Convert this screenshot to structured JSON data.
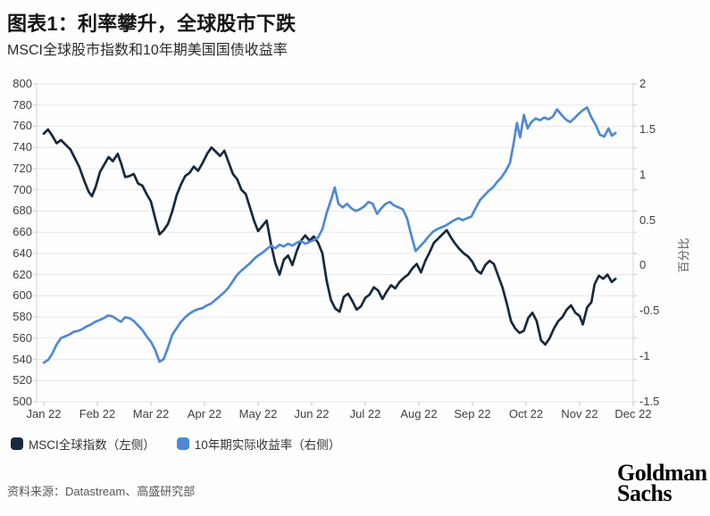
{
  "header": {
    "title": "图表1：利率攀升，全球股市下跌",
    "subtitle": "MSCI全球股市指数和10年期美国国债收益率"
  },
  "legend": [
    {
      "label": "MSCI全球指数（左侧）",
      "color": "#16293e"
    },
    {
      "label": "10年期实际收益率（右侧）",
      "color": "#4f89d2"
    }
  ],
  "footer": {
    "source": "资料来源：Datastream、高盛研究部",
    "logo_line1": "Goldman",
    "logo_line2": "Sachs"
  },
  "colors": {
    "navy_line": "#16293e",
    "blue_line": "#4f89d2",
    "gridline": "#e7e7e7",
    "axis_line": "#d4d4d4",
    "tick_mark": "#c8c8c8"
  },
  "chart_data": {
    "type": "line",
    "title": "图表1：利率攀升，全球股市下跌",
    "subtitle": "MSCI全球股市指数和10年期美国国债收益率",
    "grid": true,
    "legend_position": "bottom",
    "x_axis": {
      "tick_labels": [
        "Jan 22",
        "Feb 22",
        "Mar 22",
        "Apr 22",
        "May 22",
        "Jun 22",
        "Jul 22",
        "Aug 22",
        "Sep 22",
        "Oct 22",
        "Nov 22",
        "Dec 22"
      ],
      "unit": "months_from_jan_2022"
    },
    "y_left": {
      "ticks": [
        800,
        780,
        760,
        740,
        720,
        700,
        680,
        660,
        640,
        620,
        600,
        580,
        560,
        540,
        520,
        500
      ],
      "range": [
        500,
        800
      ],
      "label": ""
    },
    "y_right": {
      "ticks": [
        2,
        1.5,
        1,
        0.5,
        0,
        -0.5,
        -1,
        -1.5
      ],
      "range": [
        -1.5,
        2
      ],
      "label": "百分比"
    },
    "series": [
      {
        "name": "MSCI全球指数（左侧）",
        "axis": "left",
        "color": "#16293e",
        "points": [
          [
            0.0,
            753
          ],
          [
            0.08,
            757
          ],
          [
            0.16,
            751
          ],
          [
            0.24,
            744
          ],
          [
            0.32,
            747
          ],
          [
            0.42,
            742
          ],
          [
            0.5,
            738
          ],
          [
            0.58,
            730
          ],
          [
            0.66,
            722
          ],
          [
            0.76,
            708
          ],
          [
            0.84,
            698
          ],
          [
            0.9,
            694
          ],
          [
            0.97,
            703
          ],
          [
            1.05,
            717
          ],
          [
            1.13,
            724
          ],
          [
            1.21,
            731
          ],
          [
            1.29,
            727
          ],
          [
            1.38,
            734
          ],
          [
            1.45,
            724
          ],
          [
            1.52,
            712
          ],
          [
            1.6,
            713
          ],
          [
            1.68,
            715
          ],
          [
            1.76,
            706
          ],
          [
            1.84,
            704
          ],
          [
            1.92,
            696
          ],
          [
            2.0,
            689
          ],
          [
            2.08,
            673
          ],
          [
            2.16,
            658
          ],
          [
            2.24,
            662
          ],
          [
            2.32,
            668
          ],
          [
            2.4,
            680
          ],
          [
            2.48,
            695
          ],
          [
            2.56,
            705
          ],
          [
            2.64,
            713
          ],
          [
            2.72,
            716
          ],
          [
            2.8,
            722
          ],
          [
            2.88,
            718
          ],
          [
            2.96,
            725
          ],
          [
            3.05,
            734
          ],
          [
            3.13,
            740
          ],
          [
            3.21,
            736
          ],
          [
            3.29,
            732
          ],
          [
            3.37,
            737
          ],
          [
            3.45,
            726
          ],
          [
            3.53,
            715
          ],
          [
            3.61,
            710
          ],
          [
            3.69,
            700
          ],
          [
            3.77,
            696
          ],
          [
            3.85,
            683
          ],
          [
            3.93,
            670
          ],
          [
            4.0,
            661
          ],
          [
            4.08,
            666
          ],
          [
            4.16,
            671
          ],
          [
            4.24,
            649
          ],
          [
            4.32,
            631
          ],
          [
            4.4,
            620
          ],
          [
            4.48,
            634
          ],
          [
            4.56,
            638
          ],
          [
            4.64,
            629
          ],
          [
            4.72,
            642
          ],
          [
            4.8,
            652
          ],
          [
            4.88,
            657
          ],
          [
            4.96,
            652
          ],
          [
            5.04,
            656
          ],
          [
            5.12,
            650
          ],
          [
            5.2,
            640
          ],
          [
            5.28,
            614
          ],
          [
            5.36,
            596
          ],
          [
            5.44,
            588
          ],
          [
            5.52,
            585
          ],
          [
            5.6,
            599
          ],
          [
            5.68,
            602
          ],
          [
            5.76,
            595
          ],
          [
            5.84,
            587
          ],
          [
            5.92,
            590
          ],
          [
            6.0,
            598
          ],
          [
            6.08,
            601
          ],
          [
            6.16,
            608
          ],
          [
            6.24,
            605
          ],
          [
            6.32,
            597
          ],
          [
            6.4,
            604
          ],
          [
            6.48,
            610
          ],
          [
            6.56,
            607
          ],
          [
            6.64,
            613
          ],
          [
            6.72,
            617
          ],
          [
            6.8,
            620
          ],
          [
            6.88,
            626
          ],
          [
            6.96,
            630
          ],
          [
            7.04,
            622
          ],
          [
            7.12,
            633
          ],
          [
            7.2,
            641
          ],
          [
            7.28,
            650
          ],
          [
            7.36,
            654
          ],
          [
            7.44,
            658
          ],
          [
            7.52,
            662
          ],
          [
            7.6,
            655
          ],
          [
            7.68,
            649
          ],
          [
            7.76,
            644
          ],
          [
            7.84,
            640
          ],
          [
            7.92,
            637
          ],
          [
            8.0,
            632
          ],
          [
            8.08,
            624
          ],
          [
            8.16,
            621
          ],
          [
            8.24,
            629
          ],
          [
            8.32,
            633
          ],
          [
            8.4,
            630
          ],
          [
            8.48,
            619
          ],
          [
            8.56,
            608
          ],
          [
            8.64,
            593
          ],
          [
            8.72,
            576
          ],
          [
            8.8,
            569
          ],
          [
            8.88,
            565
          ],
          [
            8.96,
            567
          ],
          [
            9.04,
            579
          ],
          [
            9.12,
            584
          ],
          [
            9.2,
            576
          ],
          [
            9.28,
            558
          ],
          [
            9.36,
            554
          ],
          [
            9.44,
            560
          ],
          [
            9.52,
            569
          ],
          [
            9.6,
            576
          ],
          [
            9.68,
            580
          ],
          [
            9.76,
            587
          ],
          [
            9.84,
            591
          ],
          [
            9.92,
            584
          ],
          [
            10.0,
            581
          ],
          [
            10.06,
            573
          ],
          [
            10.14,
            589
          ],
          [
            10.22,
            594
          ],
          [
            10.28,
            611
          ],
          [
            10.36,
            619
          ],
          [
            10.44,
            616
          ],
          [
            10.52,
            620
          ],
          [
            10.6,
            613
          ],
          [
            10.67,
            616
          ]
        ]
      },
      {
        "name": "10年期实际收益率（右侧）",
        "axis": "right",
        "color": "#4f89d2",
        "points": [
          [
            0.0,
            -1.07
          ],
          [
            0.08,
            -1.04
          ],
          [
            0.16,
            -0.97
          ],
          [
            0.24,
            -0.87
          ],
          [
            0.32,
            -0.8
          ],
          [
            0.4,
            -0.78
          ],
          [
            0.48,
            -0.76
          ],
          [
            0.56,
            -0.73
          ],
          [
            0.64,
            -0.72
          ],
          [
            0.72,
            -0.7
          ],
          [
            0.8,
            -0.67
          ],
          [
            0.88,
            -0.65
          ],
          [
            0.96,
            -0.62
          ],
          [
            1.04,
            -0.6
          ],
          [
            1.12,
            -0.58
          ],
          [
            1.2,
            -0.55
          ],
          [
            1.28,
            -0.56
          ],
          [
            1.36,
            -0.59
          ],
          [
            1.44,
            -0.62
          ],
          [
            1.52,
            -0.57
          ],
          [
            1.6,
            -0.58
          ],
          [
            1.68,
            -0.61
          ],
          [
            1.76,
            -0.66
          ],
          [
            1.84,
            -0.71
          ],
          [
            1.92,
            -0.78
          ],
          [
            2.0,
            -0.84
          ],
          [
            2.08,
            -0.93
          ],
          [
            2.16,
            -1.06
          ],
          [
            2.24,
            -1.03
          ],
          [
            2.32,
            -0.9
          ],
          [
            2.4,
            -0.76
          ],
          [
            2.48,
            -0.69
          ],
          [
            2.56,
            -0.62
          ],
          [
            2.64,
            -0.57
          ],
          [
            2.72,
            -0.53
          ],
          [
            2.8,
            -0.5
          ],
          [
            2.88,
            -0.48
          ],
          [
            2.96,
            -0.47
          ],
          [
            3.04,
            -0.44
          ],
          [
            3.12,
            -0.42
          ],
          [
            3.2,
            -0.38
          ],
          [
            3.28,
            -0.34
          ],
          [
            3.36,
            -0.3
          ],
          [
            3.44,
            -0.25
          ],
          [
            3.52,
            -0.18
          ],
          [
            3.6,
            -0.11
          ],
          [
            3.68,
            -0.06
          ],
          [
            3.76,
            -0.02
          ],
          [
            3.84,
            0.02
          ],
          [
            3.92,
            0.07
          ],
          [
            4.0,
            0.11
          ],
          [
            4.08,
            0.14
          ],
          [
            4.16,
            0.18
          ],
          [
            4.24,
            0.22
          ],
          [
            4.32,
            0.19
          ],
          [
            4.4,
            0.23
          ],
          [
            4.48,
            0.21
          ],
          [
            4.56,
            0.24
          ],
          [
            4.64,
            0.22
          ],
          [
            4.72,
            0.25
          ],
          [
            4.8,
            0.27
          ],
          [
            4.88,
            0.24
          ],
          [
            4.96,
            0.26
          ],
          [
            5.04,
            0.28
          ],
          [
            5.12,
            0.31
          ],
          [
            5.2,
            0.4
          ],
          [
            5.28,
            0.58
          ],
          [
            5.36,
            0.72
          ],
          [
            5.43,
            0.86
          ],
          [
            5.5,
            0.68
          ],
          [
            5.58,
            0.64
          ],
          [
            5.66,
            0.68
          ],
          [
            5.74,
            0.63
          ],
          [
            5.82,
            0.6
          ],
          [
            5.9,
            0.62
          ],
          [
            5.98,
            0.65
          ],
          [
            6.06,
            0.7
          ],
          [
            6.14,
            0.68
          ],
          [
            6.22,
            0.57
          ],
          [
            6.3,
            0.63
          ],
          [
            6.38,
            0.68
          ],
          [
            6.46,
            0.7
          ],
          [
            6.54,
            0.66
          ],
          [
            6.62,
            0.64
          ],
          [
            6.7,
            0.62
          ],
          [
            6.78,
            0.52
          ],
          [
            6.86,
            0.33
          ],
          [
            6.94,
            0.16
          ],
          [
            7.02,
            0.21
          ],
          [
            7.1,
            0.26
          ],
          [
            7.18,
            0.32
          ],
          [
            7.26,
            0.37
          ],
          [
            7.34,
            0.4
          ],
          [
            7.42,
            0.42
          ],
          [
            7.5,
            0.44
          ],
          [
            7.58,
            0.47
          ],
          [
            7.66,
            0.5
          ],
          [
            7.74,
            0.52
          ],
          [
            7.82,
            0.5
          ],
          [
            7.9,
            0.52
          ],
          [
            7.98,
            0.54
          ],
          [
            8.06,
            0.63
          ],
          [
            8.14,
            0.72
          ],
          [
            8.22,
            0.77
          ],
          [
            8.3,
            0.82
          ],
          [
            8.38,
            0.86
          ],
          [
            8.46,
            0.92
          ],
          [
            8.54,
            0.97
          ],
          [
            8.62,
            1.04
          ],
          [
            8.7,
            1.13
          ],
          [
            8.77,
            1.35
          ],
          [
            8.83,
            1.57
          ],
          [
            8.89,
            1.41
          ],
          [
            8.96,
            1.66
          ],
          [
            9.03,
            1.51
          ],
          [
            9.1,
            1.58
          ],
          [
            9.18,
            1.62
          ],
          [
            9.26,
            1.6
          ],
          [
            9.34,
            1.63
          ],
          [
            9.42,
            1.61
          ],
          [
            9.5,
            1.64
          ],
          [
            9.58,
            1.72
          ],
          [
            9.66,
            1.66
          ],
          [
            9.74,
            1.61
          ],
          [
            9.82,
            1.58
          ],
          [
            9.9,
            1.62
          ],
          [
            9.98,
            1.67
          ],
          [
            10.06,
            1.71
          ],
          [
            10.14,
            1.74
          ],
          [
            10.22,
            1.63
          ],
          [
            10.3,
            1.55
          ],
          [
            10.38,
            1.44
          ],
          [
            10.46,
            1.42
          ],
          [
            10.54,
            1.51
          ],
          [
            10.6,
            1.43
          ],
          [
            10.67,
            1.46
          ]
        ]
      }
    ]
  }
}
